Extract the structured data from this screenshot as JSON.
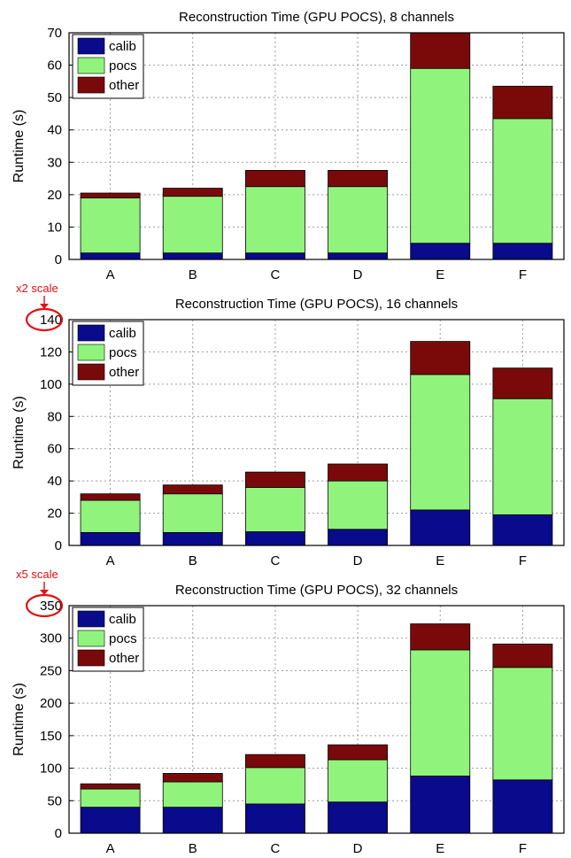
{
  "chart_data": [
    {
      "type": "bar",
      "stacked": true,
      "title": "Reconstruction Time (GPU POCS), 8 channels",
      "ylabel": "Runtime (s)",
      "ylim": [
        0,
        70
      ],
      "yticks": [
        0,
        10,
        20,
        30,
        40,
        50,
        60,
        70
      ],
      "grid": true,
      "legend_position": "top-left",
      "categories": [
        "A",
        "B",
        "C",
        "D",
        "E",
        "F"
      ],
      "series": [
        {
          "name": "calib",
          "color": "#0a0a8c",
          "values": [
            2,
            2,
            2,
            2,
            5,
            5
          ]
        },
        {
          "name": "pocs",
          "color": "#90f47c",
          "values": [
            17,
            17.5,
            20.5,
            20.5,
            54,
            38.5
          ]
        },
        {
          "name": "other",
          "color": "#7a0a0a",
          "values": [
            1.5,
            2.5,
            5,
            5,
            11,
            10
          ]
        }
      ]
    },
    {
      "type": "bar",
      "stacked": true,
      "title": "Reconstruction Time (GPU POCS), 16 channels",
      "ylabel": "Runtime (s)",
      "ylim": [
        0,
        140
      ],
      "yticks": [
        0,
        20,
        40,
        60,
        80,
        100,
        120,
        140
      ],
      "grid": true,
      "legend_position": "top-left",
      "annotation": "x2 scale",
      "categories": [
        "A",
        "B",
        "C",
        "D",
        "E",
        "F"
      ],
      "series": [
        {
          "name": "calib",
          "color": "#0a0a8c",
          "values": [
            8,
            8,
            8.5,
            10,
            22,
            19
          ]
        },
        {
          "name": "pocs",
          "color": "#90f47c",
          "values": [
            20,
            24,
            27.5,
            30,
            84,
            72
          ]
        },
        {
          "name": "other",
          "color": "#7a0a0a",
          "values": [
            4,
            5.5,
            9.5,
            10.5,
            20.5,
            19
          ]
        }
      ]
    },
    {
      "type": "bar",
      "stacked": true,
      "title": "Reconstruction Time (GPU POCS), 32 channels",
      "ylabel": "Runtime (s)",
      "ylim": [
        0,
        350
      ],
      "yticks": [
        0,
        50,
        100,
        150,
        200,
        250,
        300,
        350
      ],
      "grid": true,
      "legend_position": "top-left",
      "annotation": "x5 scale",
      "categories": [
        "A",
        "B",
        "C",
        "D",
        "E",
        "F"
      ],
      "series": [
        {
          "name": "calib",
          "color": "#0a0a8c",
          "values": [
            40,
            40,
            45,
            48,
            88,
            82
          ]
        },
        {
          "name": "pocs",
          "color": "#90f47c",
          "values": [
            28,
            39,
            56,
            65,
            194,
            173
          ]
        },
        {
          "name": "other",
          "color": "#7a0a0a",
          "values": [
            8,
            13,
            20,
            23,
            40,
            36
          ]
        }
      ]
    }
  ]
}
